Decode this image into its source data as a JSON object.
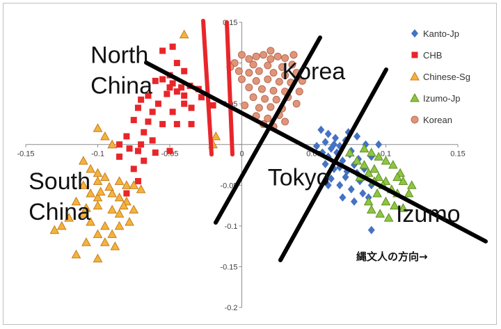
{
  "chart_data": {
    "type": "scatter",
    "title": "",
    "xlabel": "",
    "ylabel": "",
    "xlim": [
      -0.15,
      0.15
    ],
    "ylim": [
      -0.2,
      0.15
    ],
    "x_ticks": [
      "-0.15",
      "-0.1",
      "-0.05",
      "0",
      "0.05",
      "0.1",
      "0.15"
    ],
    "y_ticks": [
      "0.15",
      "0.1",
      "0.05",
      "0",
      "-0.05",
      "-0.1",
      "-0.15",
      "-0.2"
    ],
    "legend_position": "top-right",
    "series": [
      {
        "name": "Kanto-Jp",
        "color": "#4472c4",
        "marker": "diamond",
        "points": [
          [
            0.055,
            0.018
          ],
          [
            0.06,
            0.013
          ],
          [
            0.065,
            0.008
          ],
          [
            0.058,
            0.003
          ],
          [
            0.052,
            -0.002
          ],
          [
            0.062,
            -0.005
          ],
          [
            0.068,
            -0.002
          ],
          [
            0.072,
            0.005
          ],
          [
            0.066,
            -0.01
          ],
          [
            0.06,
            -0.015
          ],
          [
            0.07,
            -0.02
          ],
          [
            0.075,
            -0.012
          ],
          [
            0.078,
            -0.025
          ],
          [
            0.064,
            -0.03
          ],
          [
            0.058,
            -0.024
          ],
          [
            0.08,
            -0.035
          ],
          [
            0.072,
            -0.04
          ],
          [
            0.068,
            -0.05
          ],
          [
            0.076,
            -0.055
          ],
          [
            0.082,
            -0.045
          ],
          [
            0.085,
            -0.03
          ],
          [
            0.09,
            -0.015
          ],
          [
            0.086,
            0.0
          ],
          [
            0.08,
            0.01
          ],
          [
            0.095,
            0.0
          ],
          [
            0.062,
            -0.042
          ],
          [
            0.07,
            -0.065
          ],
          [
            0.078,
            -0.07
          ],
          [
            0.084,
            -0.06
          ],
          [
            0.09,
            -0.05
          ],
          [
            0.06,
            -0.05
          ],
          [
            0.056,
            -0.01
          ],
          [
            0.074,
            0.015
          ],
          [
            0.088,
            -0.065
          ],
          [
            0.09,
            -0.105
          ],
          [
            0.068,
            -0.028
          ],
          [
            0.073,
            -0.033
          ],
          [
            0.081,
            -0.018
          ],
          [
            0.064,
            0.0
          ],
          [
            0.076,
            -0.008
          ]
        ]
      },
      {
        "name": "CHB",
        "color": "#e8262a",
        "marker": "square",
        "points": [
          [
            -0.045,
            0.1
          ],
          [
            -0.04,
            0.09
          ],
          [
            -0.05,
            0.085
          ],
          [
            -0.055,
            0.08
          ],
          [
            -0.06,
            0.078
          ],
          [
            -0.048,
            0.075
          ],
          [
            -0.042,
            0.07
          ],
          [
            -0.036,
            0.072
          ],
          [
            -0.03,
            0.068
          ],
          [
            -0.045,
            0.065
          ],
          [
            -0.052,
            0.062
          ],
          [
            -0.065,
            0.06
          ],
          [
            -0.07,
            0.055
          ],
          [
            -0.058,
            0.05
          ],
          [
            -0.04,
            0.05
          ],
          [
            -0.035,
            0.045
          ],
          [
            -0.048,
            0.04
          ],
          [
            -0.062,
            0.04
          ],
          [
            -0.072,
            0.045
          ],
          [
            -0.04,
            0.06
          ],
          [
            -0.05,
            0.07
          ],
          [
            -0.075,
            0.03
          ],
          [
            -0.065,
            0.028
          ],
          [
            -0.055,
            0.025
          ],
          [
            -0.045,
            0.025
          ],
          [
            -0.035,
            0.025
          ],
          [
            -0.068,
            0.015
          ],
          [
            -0.08,
            0.01
          ],
          [
            -0.085,
            0.0
          ],
          [
            -0.078,
            -0.005
          ],
          [
            -0.072,
            -0.008
          ],
          [
            -0.068,
            -0.02
          ],
          [
            -0.075,
            -0.03
          ],
          [
            -0.072,
            -0.045
          ],
          [
            -0.08,
            -0.06
          ],
          [
            -0.085,
            -0.015
          ],
          [
            -0.06,
            -0.01
          ],
          [
            -0.05,
            -0.008
          ],
          [
            -0.055,
            0.115
          ],
          [
            -0.048,
            0.12
          ],
          [
            -0.02,
            0.048
          ],
          [
            -0.028,
            0.058
          ],
          [
            -0.07,
            0.0
          ],
          [
            -0.062,
            0.005
          ]
        ]
      },
      {
        "name": "Chinese-Sg",
        "color": "#f2b43c",
        "marker": "triangle",
        "points": [
          [
            -0.04,
            0.135
          ],
          [
            -0.02,
            0.0
          ],
          [
            -0.018,
            0.01
          ],
          [
            -0.1,
            0.02
          ],
          [
            -0.095,
            0.01
          ],
          [
            -0.09,
            0.0
          ],
          [
            -0.11,
            -0.02
          ],
          [
            -0.105,
            -0.03
          ],
          [
            -0.1,
            -0.035
          ],
          [
            -0.095,
            -0.04
          ],
          [
            -0.085,
            -0.045
          ],
          [
            -0.08,
            -0.05
          ],
          [
            -0.11,
            -0.05
          ],
          [
            -0.105,
            -0.06
          ],
          [
            -0.1,
            -0.065
          ],
          [
            -0.09,
            -0.06
          ],
          [
            -0.085,
            -0.065
          ],
          [
            -0.075,
            -0.05
          ],
          [
            -0.07,
            -0.055
          ],
          [
            -0.115,
            -0.07
          ],
          [
            -0.1,
            -0.075
          ],
          [
            -0.09,
            -0.08
          ],
          [
            -0.085,
            -0.085
          ],
          [
            -0.08,
            -0.07
          ],
          [
            -0.12,
            -0.09
          ],
          [
            -0.11,
            -0.085
          ],
          [
            -0.105,
            -0.095
          ],
          [
            -0.095,
            -0.1
          ],
          [
            -0.09,
            -0.11
          ],
          [
            -0.1,
            -0.11
          ],
          [
            -0.108,
            -0.12
          ],
          [
            -0.095,
            -0.12
          ],
          [
            -0.088,
            -0.125
          ],
          [
            -0.115,
            -0.135
          ],
          [
            -0.1,
            -0.14
          ],
          [
            -0.125,
            -0.1
          ],
          [
            -0.13,
            -0.105
          ],
          [
            -0.078,
            -0.095
          ],
          [
            -0.085,
            -0.1
          ],
          [
            -0.075,
            -0.08
          ],
          [
            -0.1,
            -0.045
          ],
          [
            -0.092,
            -0.052
          ],
          [
            -0.098,
            -0.058
          ],
          [
            -0.082,
            -0.075
          ],
          [
            -0.108,
            -0.078
          ]
        ]
      },
      {
        "name": "Izumo-Jp",
        "color": "#8dc63f",
        "marker": "triangle",
        "points": [
          [
            0.075,
            -0.01
          ],
          [
            0.08,
            -0.02
          ],
          [
            0.085,
            -0.025
          ],
          [
            0.088,
            -0.035
          ],
          [
            0.092,
            -0.03
          ],
          [
            0.095,
            -0.04
          ],
          [
            0.1,
            -0.045
          ],
          [
            0.098,
            -0.05
          ],
          [
            0.104,
            -0.055
          ],
          [
            0.108,
            -0.06
          ],
          [
            0.112,
            -0.045
          ],
          [
            0.11,
            -0.035
          ],
          [
            0.105,
            -0.025
          ],
          [
            0.1,
            -0.02
          ],
          [
            0.095,
            -0.015
          ],
          [
            0.09,
            -0.01
          ],
          [
            0.085,
            -0.005
          ],
          [
            0.094,
            -0.06
          ],
          [
            0.088,
            -0.07
          ],
          [
            0.1,
            -0.07
          ],
          [
            0.106,
            -0.075
          ],
          [
            0.112,
            -0.078
          ],
          [
            0.096,
            -0.085
          ],
          [
            0.09,
            -0.08
          ],
          [
            0.102,
            -0.09
          ],
          [
            0.116,
            -0.06
          ],
          [
            0.118,
            -0.05
          ],
          [
            0.108,
            -0.04
          ],
          [
            0.092,
            -0.045
          ],
          [
            0.082,
            -0.04
          ]
        ]
      },
      {
        "name": "Korean",
        "color": "#e0957a",
        "marker": "circle",
        "points": [
          [
            0.0,
            0.11
          ],
          [
            0.005,
            0.105
          ],
          [
            0.01,
            0.108
          ],
          [
            0.015,
            0.11
          ],
          [
            0.02,
            0.105
          ],
          [
            0.025,
            0.108
          ],
          [
            0.03,
            0.106
          ],
          [
            -0.005,
            0.1
          ],
          [
            0.008,
            0.098
          ],
          [
            0.018,
            0.097
          ],
          [
            0.028,
            0.095
          ],
          [
            0.035,
            0.098
          ],
          [
            -0.002,
            0.09
          ],
          [
            0.005,
            0.088
          ],
          [
            0.012,
            0.09
          ],
          [
            0.022,
            0.088
          ],
          [
            0.03,
            0.085
          ],
          [
            0.038,
            0.088
          ],
          [
            0.0,
            0.08
          ],
          [
            0.01,
            0.078
          ],
          [
            0.018,
            0.08
          ],
          [
            0.026,
            0.077
          ],
          [
            0.034,
            0.076
          ],
          [
            0.005,
            0.07
          ],
          [
            0.014,
            0.068
          ],
          [
            0.022,
            0.066
          ],
          [
            0.03,
            0.065
          ],
          [
            0.008,
            0.058
          ],
          [
            0.016,
            0.056
          ],
          [
            0.024,
            0.055
          ],
          [
            0.032,
            0.058
          ],
          [
            0.002,
            0.048
          ],
          [
            0.012,
            0.045
          ],
          [
            0.02,
            0.046
          ],
          [
            0.028,
            0.044
          ],
          [
            0.038,
            0.05
          ],
          [
            0.01,
            0.035
          ],
          [
            0.018,
            0.032
          ],
          [
            0.026,
            0.036
          ],
          [
            0.015,
            0.025
          ],
          [
            0.022,
            0.022
          ],
          [
            0.03,
            0.028
          ],
          [
            0.04,
            0.065
          ],
          [
            0.042,
            0.078
          ],
          [
            -0.008,
            0.095
          ],
          [
            0.036,
            0.11
          ],
          [
            0.02,
            0.115
          ]
        ]
      }
    ],
    "annotations": {
      "region_labels": [
        {
          "text": "North\nChina",
          "x": -0.105,
          "y": 0.1
        },
        {
          "text": "South\nChina",
          "x": -0.148,
          "y": -0.055
        },
        {
          "text": "Korea",
          "x": 0.028,
          "y": 0.08
        },
        {
          "text": "Tokyo",
          "x": 0.018,
          "y": -0.05
        },
        {
          "text": "Izumo",
          "x": 0.107,
          "y": -0.095
        }
      ],
      "note": "縄文人の方向→"
    }
  }
}
